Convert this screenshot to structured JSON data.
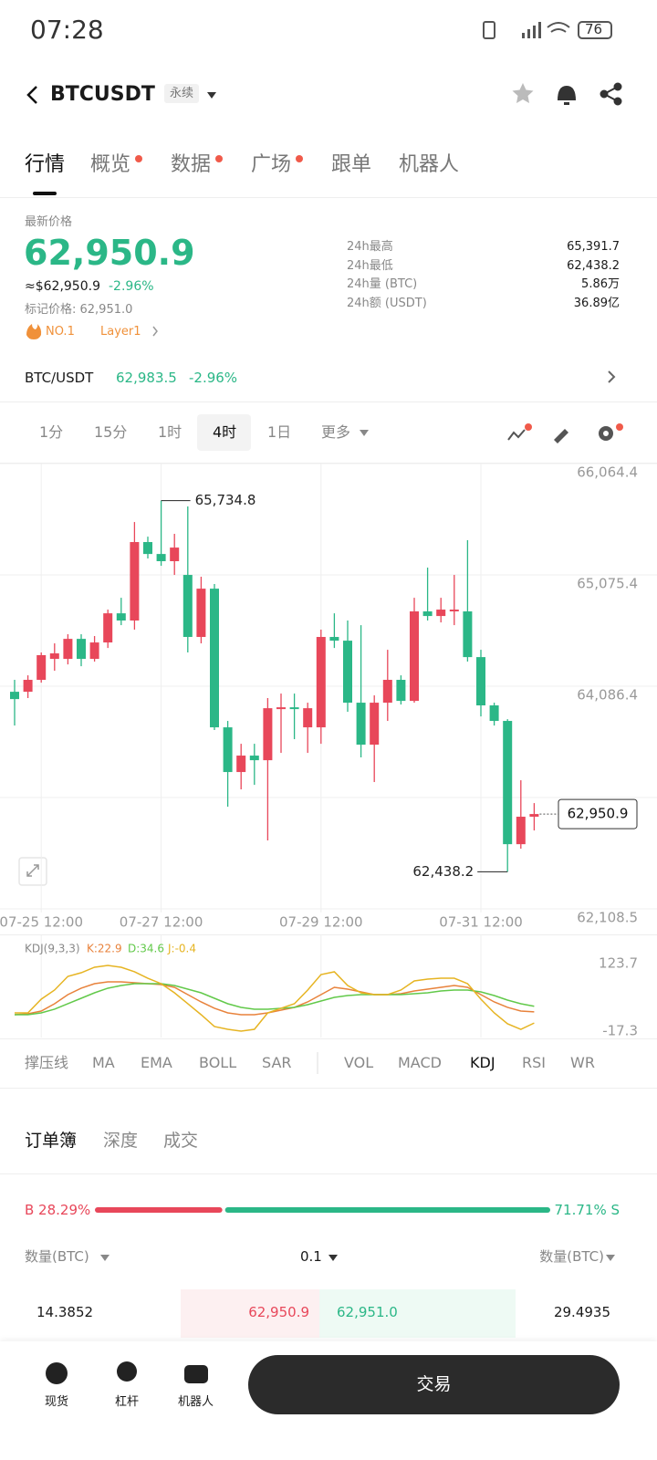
{
  "status": {
    "time": "07:28",
    "battery": "76"
  },
  "header": {
    "symbol": "BTCUSDT",
    "tag": "永续"
  },
  "tabs": [
    "行情",
    "概览",
    "数据",
    "广场",
    "跟单",
    "机器人"
  ],
  "price": {
    "label": "最新价格",
    "last": "62,950.9",
    "usd": "≈$62,950.9",
    "change": "-2.96%",
    "mark": "标记价格: 62,951.0",
    "rank": "NO.1",
    "sector": "Layer1"
  },
  "stats": [
    {
      "label": "24h最高",
      "value": "65,391.7"
    },
    {
      "label": "24h最低",
      "value": "62,438.2"
    },
    {
      "label": "24h量 (BTC)",
      "value": "5.86万"
    },
    {
      "label": "24h额 (USDT)",
      "value": "36.89亿"
    }
  ],
  "spot": {
    "pair": "BTC/USDT",
    "price": "62,983.5",
    "change": "-2.96%"
  },
  "intervals": [
    "1分",
    "15分",
    "1时",
    "4时",
    "1日",
    "更多"
  ],
  "chart_data": [
    {
      "type": "candlestick",
      "categories": [
        null,
        null,
        "07-25 12:00",
        null,
        null,
        null,
        null,
        null,
        null,
        null,
        null,
        "07-27 12:00",
        null,
        null,
        null,
        null,
        null,
        null,
        null,
        null,
        null,
        null,
        null,
        "07-29 12:00",
        null,
        null,
        null,
        null,
        null,
        null,
        null,
        null,
        null,
        null,
        null,
        "07-31 12:00",
        null,
        null,
        null,
        null
      ],
      "open": [
        64037,
        64037,
        64143,
        64329,
        64329,
        64507,
        64329,
        64475,
        64734,
        64670,
        65367,
        65261,
        65197,
        65075,
        64524,
        64953,
        63721,
        63324,
        63470,
        63429,
        63883,
        63899,
        63721,
        63721,
        64524,
        64491,
        63940,
        63567,
        63940,
        64143,
        63956,
        64751,
        64710,
        64751,
        64751,
        64345,
        63916,
        63778,
        62683,
        62927
      ],
      "high": [
        64143,
        64183,
        64386,
        64467,
        64548,
        64548,
        64532,
        64767,
        64872,
        65545,
        65415,
        65734.8,
        65440,
        65683,
        65059,
        64994,
        63778,
        63575,
        63575,
        63981,
        64021,
        64021,
        63940,
        64589,
        64734,
        64670,
        64629,
        64005,
        64410,
        64183,
        64872,
        65140,
        64872,
        65075,
        65383,
        64410,
        63940,
        63794,
        63251,
        63048
      ],
      "low": [
        63737,
        63981,
        64118,
        64224,
        64280,
        64264,
        64305,
        64426,
        64629,
        64589,
        65221,
        65156,
        65075,
        64386,
        64467,
        63697,
        63016,
        63170,
        63210,
        62716,
        63494,
        63616,
        63494,
        63575,
        64426,
        63859,
        63454,
        63235,
        63778,
        63924,
        63940,
        64670,
        64653,
        64629,
        64305,
        63818,
        63737,
        62438.2,
        62643,
        62805
      ],
      "close": [
        63972,
        64143,
        64362,
        64378,
        64507,
        64329,
        64475,
        64734,
        64670,
        65367,
        65261,
        65197,
        65318,
        64524,
        64953,
        63721,
        63324,
        63470,
        63429,
        63891,
        63899,
        63883,
        63891,
        64524,
        64491,
        63940,
        63567,
        63940,
        64143,
        63956,
        64751,
        64710,
        64767,
        64767,
        64345,
        63916,
        63778,
        62683,
        62927,
        62950.9
      ],
      "up_color": "#e8475a",
      "down_color": "#2bb787",
      "ylim": [
        62108.5,
        66064.4
      ],
      "yticks": [
        {
          "value": 62108.5,
          "label": "62,108.5"
        },
        {
          "value": 63097.5,
          "label": "63,097.5"
        },
        {
          "value": 64086.4,
          "label": "64,086.4"
        },
        {
          "value": 65075.4,
          "label": "65,075.4"
        },
        {
          "value": 66064.4,
          "label": "66,064.4"
        }
      ],
      "grid": true,
      "max_label": "65,734.8",
      "min_label": "62,438.2",
      "last_label": "62,950.9"
    },
    {
      "type": "line",
      "legend": [
        "KDJ(9,3,3)",
        "K:22.9",
        "D:34.6",
        "J:-0.4"
      ],
      "series": [
        {
          "color": "#e8823b",
          "values": [
            17.0,
            18.9,
            24.6,
            39.9,
            58.9,
            72.3,
            81.8,
            85.6,
            85.6,
            83.7,
            81.8,
            79.9,
            74.2,
            58.9,
            43.7,
            30.4,
            20.8,
            17.0,
            17.0,
            20.8,
            26.5,
            32.3,
            43.7,
            58.9,
            74.2,
            70.4,
            64.6,
            58.9,
            58.9,
            60.8,
            66.6,
            70.4,
            74.2,
            78.0,
            74.2,
            58.9,
            43.7,
            32.3,
            24.6,
            22.9
          ]
        },
        {
          "color": "#62c94a",
          "values": [
            17.0,
            17.0,
            20.8,
            28.5,
            39.9,
            51.3,
            62.7,
            72.3,
            78.0,
            81.8,
            81.8,
            81.8,
            78.0,
            70.4,
            62.7,
            51.3,
            39.9,
            32.3,
            28.5,
            28.5,
            30.4,
            32.3,
            38.0,
            45.6,
            53.2,
            57.0,
            58.9,
            58.9,
            58.9,
            58.9,
            60.8,
            62.7,
            66.6,
            68.5,
            68.5,
            64.6,
            57.0,
            47.5,
            39.9,
            34.6
          ]
        },
        {
          "color": "#e6b422",
          "values": [
            20.8,
            20.8,
            49.4,
            68.5,
            97.0,
            104.6,
            116.1,
            119.9,
            116.1,
            106.6,
            93.2,
            81.8,
            62.7,
            39.9,
            17.0,
            -7.7,
            -13.5,
            -17.3,
            -13.5,
            20.8,
            30.4,
            39.9,
            68.5,
            100.8,
            106.6,
            78.0,
            62.7,
            58.9,
            58.9,
            68.5,
            87.5,
            91.3,
            93.2,
            93.2,
            81.8,
            49.4,
            20.8,
            -2.0,
            -13.5,
            -0.4
          ]
        }
      ],
      "ylim": [
        -17.3,
        123.7
      ],
      "yticks": [
        -17.3,
        123.7
      ]
    }
  ],
  "indicators": [
    "撑压线",
    "MA",
    "EMA",
    "BOLL",
    "SAR",
    "VOL",
    "MACD",
    "KDJ",
    "RSI",
    "WR"
  ],
  "orderbook": {
    "tabs": [
      "订单簿",
      "深度",
      "成交"
    ],
    "ratio": {
      "values": [
        28.29,
        71.71
      ],
      "value_labels": [
        "B 28.29%",
        "71.71% S"
      ],
      "colors": [
        "#e8475a",
        "#2bb787"
      ]
    },
    "columns": [
      "数量(BTC)",
      "0.1",
      "数量(BTC)"
    ],
    "row": [
      "14.3852",
      "62,950.9",
      "62,951.0",
      "29.4935"
    ]
  },
  "nav": [
    "现货",
    "杠杆",
    "机器人"
  ],
  "button": "交易"
}
